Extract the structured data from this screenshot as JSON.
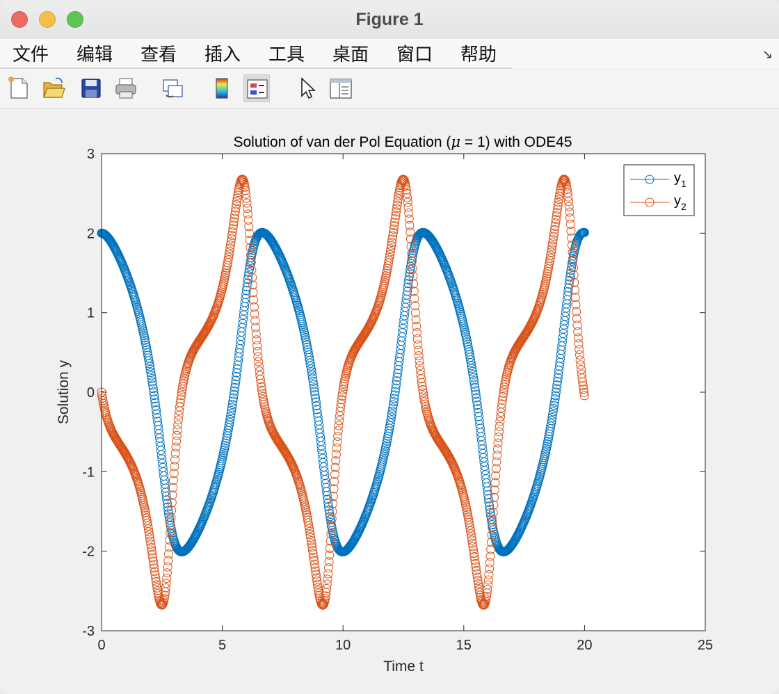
{
  "window": {
    "title": "Figure 1"
  },
  "menu": {
    "items": [
      "文件",
      "编辑",
      "查看",
      "插入",
      "工具",
      "桌面",
      "窗口",
      "帮助"
    ],
    "overflow_glyph": "↘"
  },
  "toolbar": {
    "icons": [
      "new-figure-icon",
      "open-file-icon",
      "save-icon",
      "print-icon",
      "link-plot-icon",
      "colorbar-icon",
      "legend-icon",
      "pointer-icon",
      "property-inspector-icon"
    ]
  },
  "colors": {
    "series1": "#0072bd",
    "series2": "#d95319",
    "axes_bg": "#ffffff",
    "figure_bg": "#f0f0f0"
  },
  "chart_data": {
    "type": "scatter",
    "title": "Solution of van der Pol Equation (μ = 1) with ODE45",
    "title_parts": {
      "before": "Solution of van der Pol Equation (",
      "mu": "μ",
      "after": " = 1) with ODE45"
    },
    "xlabel": "Time t",
    "ylabel": "Solution y",
    "xlim": [
      0,
      25
    ],
    "ylim": [
      -3,
      3
    ],
    "xticks": [
      0,
      5,
      10,
      15,
      20,
      25
    ],
    "yticks": [
      -3,
      -2,
      -1,
      0,
      1,
      2,
      3
    ],
    "grid": false,
    "legend_position": "top-right",
    "marker": "circle",
    "ode": {
      "mu": 1,
      "t_start": 0,
      "t_end": 20,
      "y0": [
        2,
        0
      ]
    },
    "series": [
      {
        "name": "y",
        "subscript": "1",
        "color": "#0072bd",
        "component": 0
      },
      {
        "name": "y",
        "subscript": "2",
        "color": "#d95319",
        "component": 1
      }
    ]
  }
}
